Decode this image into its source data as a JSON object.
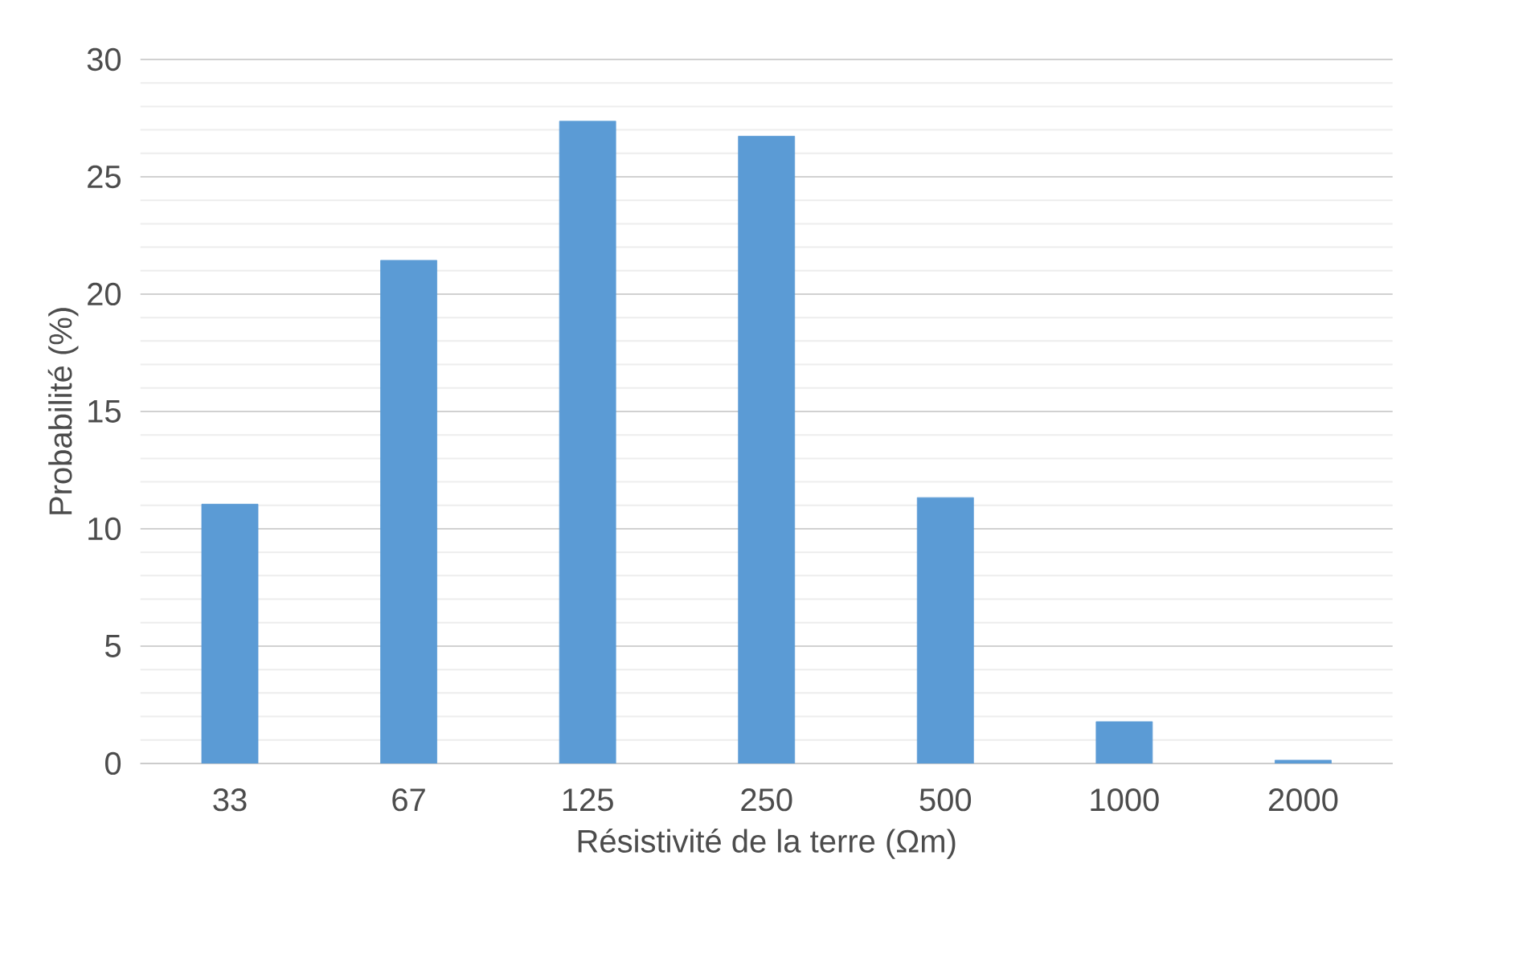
{
  "chart_data": {
    "type": "bar",
    "xlabel": "Résistivité de la terre (Ωm)",
    "ylabel": "Probabilité (%)",
    "categories": [
      "33",
      "67",
      "125",
      "250",
      "500",
      "1000",
      "2000"
    ],
    "values": [
      11.05,
      21.44,
      27.37,
      26.73,
      11.33,
      1.78,
      0.14
    ],
    "color": "#5b9bd5",
    "ylim": [
      0,
      30
    ],
    "yticks": [
      0,
      5,
      10,
      15,
      20,
      25,
      30
    ],
    "grid": "y"
  }
}
